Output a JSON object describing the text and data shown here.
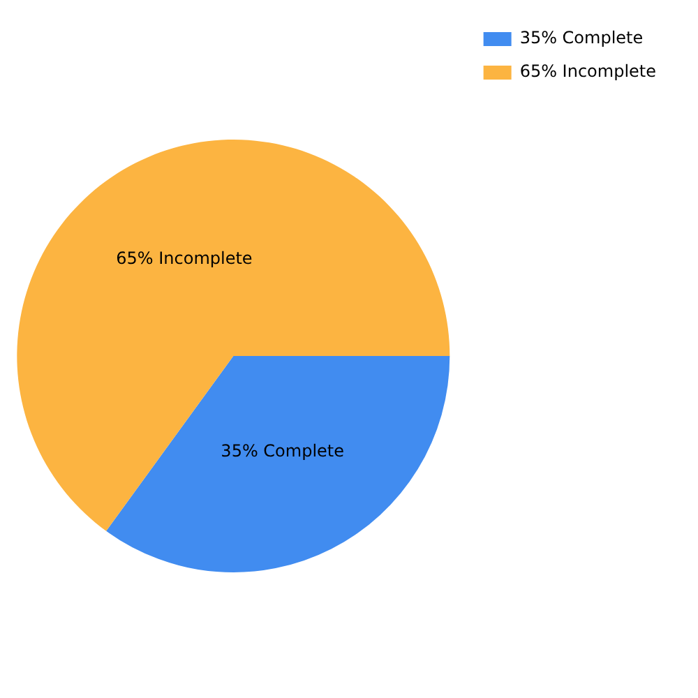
{
  "chart_data": {
    "type": "pie",
    "categories": [
      "35% Complete",
      "65% Incomplete"
    ],
    "values": [
      35,
      65
    ],
    "colors": [
      "#418cf0",
      "#fcb441"
    ],
    "value_labels": [
      "35% Complete",
      "65% Incomplete"
    ],
    "legend": "top right"
  }
}
